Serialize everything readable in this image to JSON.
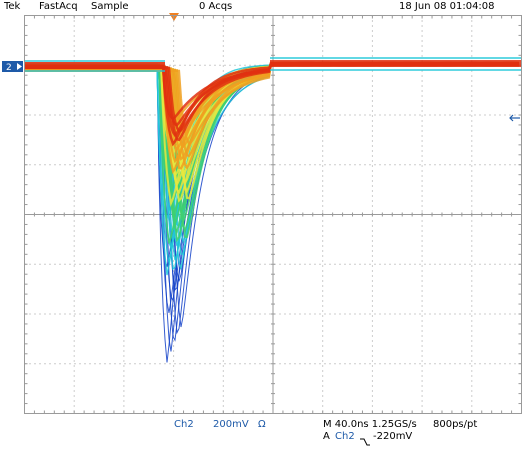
{
  "header": {
    "brand": "Tek",
    "acq_mode": "FastAcq",
    "sample_mode": "Sample",
    "acq_count": "0 Acqs",
    "datetime": "18 Jun 08 01:04:08"
  },
  "channel": {
    "marker": "2",
    "name": "Ch2",
    "scale": "200mV",
    "coupling": "Ω"
  },
  "timebase": {
    "horizontal": "M 40.0ns 1.25GS/s",
    "record": "800ps/pt"
  },
  "trigger": {
    "prefix": "A",
    "source": "Ch2",
    "slope_icon": "falling-edge-icon",
    "level": "-220mV"
  },
  "colors": {
    "grid": "#9a9a9a",
    "channel": "#1e5aa8",
    "trigger_marker": "#f08020",
    "persistence": [
      "#1040c8",
      "#20c8d8",
      "#40d070",
      "#e8e840",
      "#f0a020",
      "#e03010"
    ]
  }
}
